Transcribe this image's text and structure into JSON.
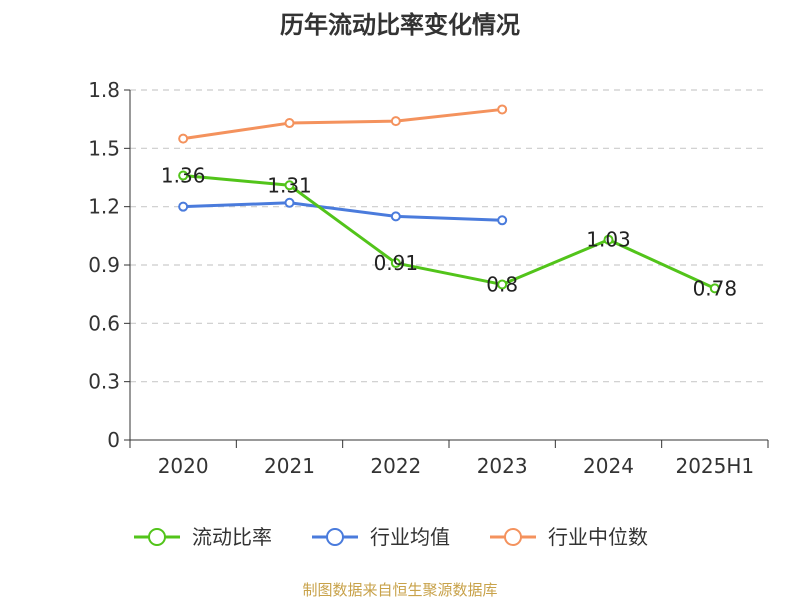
{
  "chart_data": {
    "type": "line",
    "title": "历年流动比率变化情况",
    "categories": [
      "2020",
      "2021",
      "2022",
      "2023",
      "2024",
      "2025H1"
    ],
    "y_ticks": [
      "0",
      "0.3",
      "0.6",
      "0.9",
      "1.2",
      "1.5",
      "1.8"
    ],
    "ylim": [
      0,
      1.8
    ],
    "grid": true,
    "legend_position": "bottom",
    "series": [
      {
        "name": "流动比率",
        "color": "#52c41a",
        "values": [
          1.36,
          1.31,
          0.91,
          0.8,
          1.03,
          0.78
        ],
        "labels": [
          "1.36",
          "1.31",
          "0.91",
          "0.8",
          "1.03",
          "0.78"
        ]
      },
      {
        "name": "行业均值",
        "color": "#4a7bdc",
        "values": [
          1.2,
          1.22,
          1.15,
          1.13,
          null,
          null
        ]
      },
      {
        "name": "行业中位数",
        "color": "#f4925d",
        "values": [
          1.55,
          1.63,
          1.64,
          1.7,
          null,
          null
        ]
      }
    ]
  },
  "source_text": "制图数据来自恒生聚源数据库"
}
